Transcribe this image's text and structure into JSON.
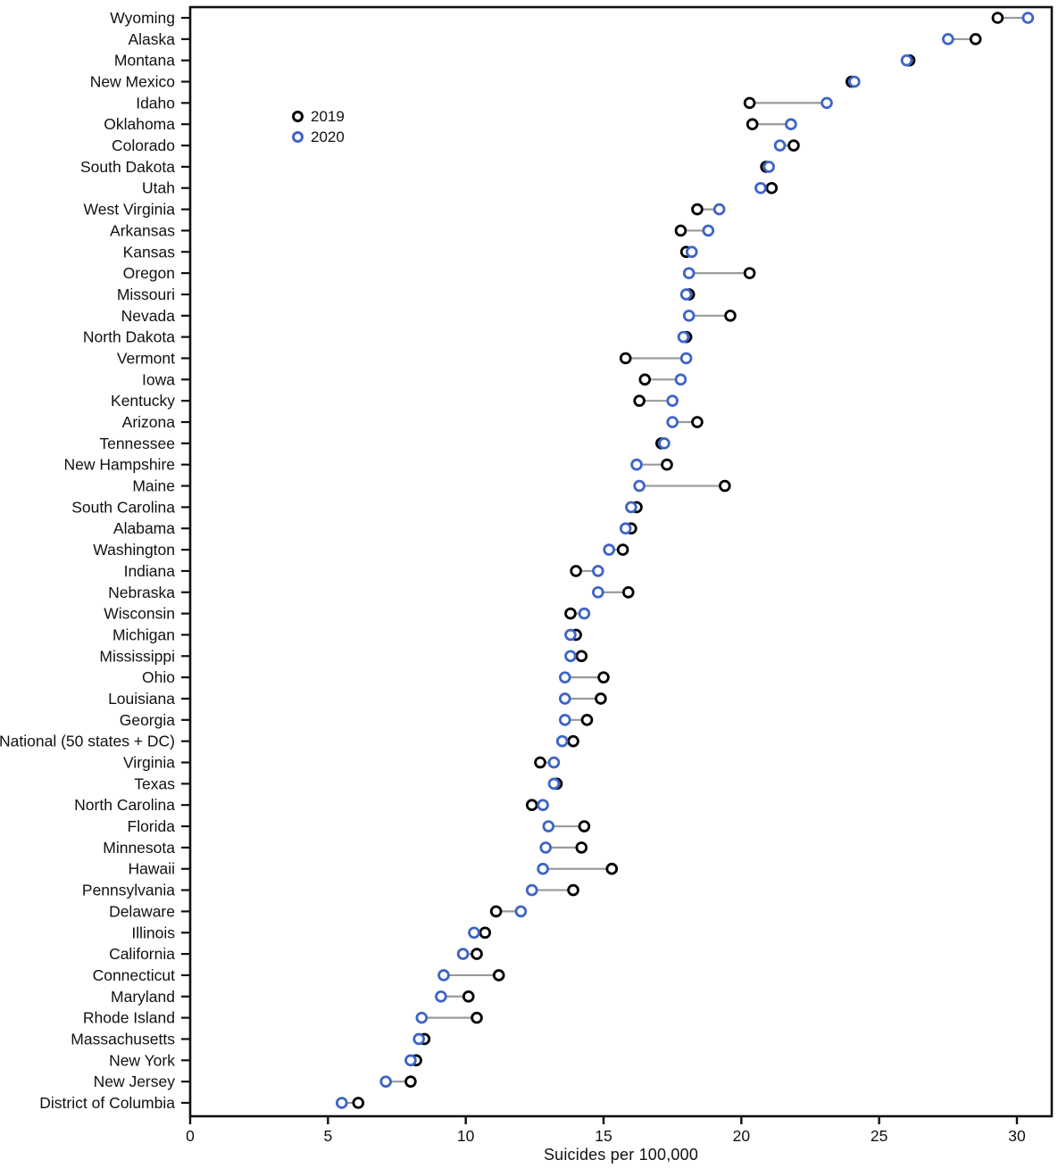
{
  "chart_data": {
    "type": "scatter",
    "subtype": "dumbbell",
    "title": "",
    "xlabel": "Suicides per 100,000",
    "ylabel": "",
    "xlim": [
      0,
      31.3
    ],
    "xticks": [
      0,
      5,
      10,
      15,
      20,
      25,
      30
    ],
    "grid": false,
    "legend_position": "upper-left-inside",
    "legend_items": [
      {
        "label": "2019",
        "color": "#000000"
      },
      {
        "label": "2020",
        "color": "#3E64C8"
      }
    ],
    "series_names": [
      "2019",
      "2020"
    ],
    "rows": [
      {
        "label": "Wyoming",
        "v2019": 29.3,
        "v2020": 30.4
      },
      {
        "label": "Alaska",
        "v2019": 28.5,
        "v2020": 27.5
      },
      {
        "label": "Montana",
        "v2019": 26.1,
        "v2020": 26.0
      },
      {
        "label": "New Mexico",
        "v2019": 24.0,
        "v2020": 24.1
      },
      {
        "label": "Idaho",
        "v2019": 20.3,
        "v2020": 23.1
      },
      {
        "label": "Oklahoma",
        "v2019": 20.4,
        "v2020": 21.8
      },
      {
        "label": "Colorado",
        "v2019": 21.9,
        "v2020": 21.4
      },
      {
        "label": "South Dakota",
        "v2019": 20.9,
        "v2020": 21.0
      },
      {
        "label": "Utah",
        "v2019": 21.1,
        "v2020": 20.7
      },
      {
        "label": "West Virginia",
        "v2019": 18.4,
        "v2020": 19.2
      },
      {
        "label": "Arkansas",
        "v2019": 17.8,
        "v2020": 18.8
      },
      {
        "label": "Kansas",
        "v2019": 18.0,
        "v2020": 18.2
      },
      {
        "label": "Oregon",
        "v2019": 20.3,
        "v2020": 18.1
      },
      {
        "label": "Missouri",
        "v2019": 18.1,
        "v2020": 18.0
      },
      {
        "label": "Nevada",
        "v2019": 19.6,
        "v2020": 18.1
      },
      {
        "label": "North Dakota",
        "v2019": 18.0,
        "v2020": 17.9
      },
      {
        "label": "Vermont",
        "v2019": 15.8,
        "v2020": 18.0
      },
      {
        "label": "Iowa",
        "v2019": 16.5,
        "v2020": 17.8
      },
      {
        "label": "Kentucky",
        "v2019": 16.3,
        "v2020": 17.5
      },
      {
        "label": "Arizona",
        "v2019": 18.4,
        "v2020": 17.5
      },
      {
        "label": "Tennessee",
        "v2019": 17.1,
        "v2020": 17.2
      },
      {
        "label": "New Hampshire",
        "v2019": 17.3,
        "v2020": 16.2
      },
      {
        "label": "Maine",
        "v2019": 19.4,
        "v2020": 16.3
      },
      {
        "label": "South Carolina",
        "v2019": 16.2,
        "v2020": 16.0
      },
      {
        "label": "Alabama",
        "v2019": 16.0,
        "v2020": 15.8
      },
      {
        "label": "Washington",
        "v2019": 15.7,
        "v2020": 15.2
      },
      {
        "label": "Indiana",
        "v2019": 14.0,
        "v2020": 14.8
      },
      {
        "label": "Nebraska",
        "v2019": 15.9,
        "v2020": 14.8
      },
      {
        "label": "Wisconsin",
        "v2019": 13.8,
        "v2020": 14.3
      },
      {
        "label": "Michigan",
        "v2019": 14.0,
        "v2020": 13.8
      },
      {
        "label": "Mississippi",
        "v2019": 14.2,
        "v2020": 13.8
      },
      {
        "label": "Ohio",
        "v2019": 15.0,
        "v2020": 13.6
      },
      {
        "label": "Louisiana",
        "v2019": 14.9,
        "v2020": 13.6
      },
      {
        "label": "Georgia",
        "v2019": 14.4,
        "v2020": 13.6
      },
      {
        "label": "National (50 states + DC)",
        "v2019": 13.9,
        "v2020": 13.5
      },
      {
        "label": "Virginia",
        "v2019": 12.7,
        "v2020": 13.2
      },
      {
        "label": "Texas",
        "v2019": 13.3,
        "v2020": 13.2
      },
      {
        "label": "North Carolina",
        "v2019": 12.4,
        "v2020": 12.8
      },
      {
        "label": "Florida",
        "v2019": 14.3,
        "v2020": 13.0
      },
      {
        "label": "Minnesota",
        "v2019": 14.2,
        "v2020": 12.9
      },
      {
        "label": "Hawaii",
        "v2019": 15.3,
        "v2020": 12.8
      },
      {
        "label": "Pennsylvania",
        "v2019": 13.9,
        "v2020": 12.4
      },
      {
        "label": "Delaware",
        "v2019": 11.1,
        "v2020": 12.0
      },
      {
        "label": "Illinois",
        "v2019": 10.7,
        "v2020": 10.3
      },
      {
        "label": "California",
        "v2019": 10.4,
        "v2020": 9.9
      },
      {
        "label": "Connecticut",
        "v2019": 11.2,
        "v2020": 9.2
      },
      {
        "label": "Maryland",
        "v2019": 10.1,
        "v2020": 9.1
      },
      {
        "label": "Rhode Island",
        "v2019": 10.4,
        "v2020": 8.4
      },
      {
        "label": "Massachusetts",
        "v2019": 8.5,
        "v2020": 8.3
      },
      {
        "label": "New York",
        "v2019": 8.2,
        "v2020": 8.0
      },
      {
        "label": "New Jersey",
        "v2019": 8.0,
        "v2020": 7.1
      },
      {
        "label": "District of Columbia",
        "v2019": 6.1,
        "v2020": 5.5
      }
    ]
  },
  "colors": {
    "series_2019": "#000000",
    "series_2020": "#3E64C8",
    "connector": "#9a9a9a",
    "frame": "#111111",
    "text": "#111111",
    "background": "#ffffff"
  }
}
